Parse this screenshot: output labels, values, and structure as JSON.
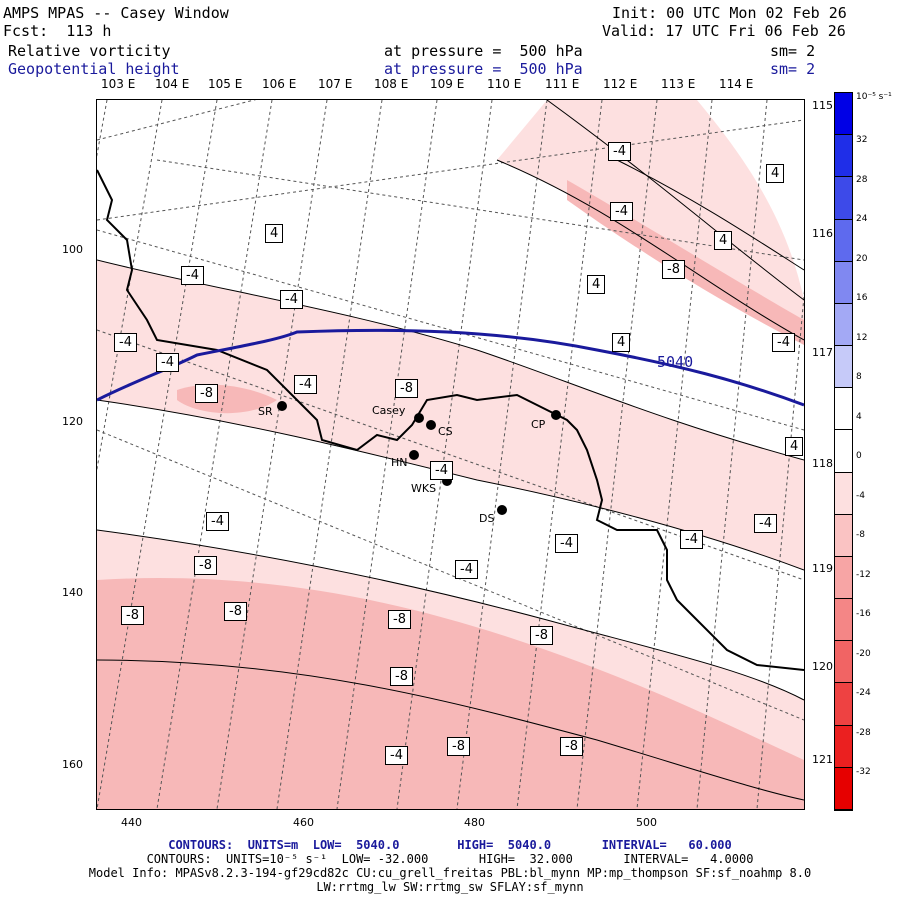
{
  "header": {
    "title": "AMPS MPAS -- Casey Window",
    "forecast": "Fcst:  113 h",
    "init": "Init: 00 UTC Mon 02 Feb 26",
    "valid": "Valid: 17 UTC Fri 06 Feb 26",
    "field1": {
      "name": "Relative vorticity",
      "level": "at pressure =  500 hPa",
      "sm": "sm= 2"
    },
    "field2": {
      "name": "Geopotential height",
      "level": "at pressure =  500 hPa",
      "sm": "sm= 2"
    }
  },
  "lon_labels": [
    "103 E",
    "104 E",
    "105 E",
    "106 E",
    "107 E",
    "108 E",
    "109 E",
    "110 E",
    "111 E",
    "112 E",
    "113 E",
    "114 E"
  ],
  "lat_labels": [
    "115 E",
    "116 E",
    "117 E",
    "118 E",
    "119 E",
    "120 E",
    "121 E"
  ],
  "axes": {
    "x_ticks": [
      "440",
      "460",
      "480",
      "500"
    ],
    "y_ticks": [
      "100",
      "120",
      "140",
      "160"
    ]
  },
  "colorbar": {
    "unit": "10⁻⁵ s⁻¹",
    "labels": [
      "32",
      "28",
      "24",
      "20",
      "16",
      "12",
      "8",
      "4",
      "0",
      "-4",
      "-8",
      "-12",
      "-16",
      "-20",
      "-24",
      "-28",
      "-32"
    ],
    "colors": [
      "#0000e6",
      "#1f2ee8",
      "#3d4ae9",
      "#5e6aee",
      "#8088f1",
      "#a3a9f5",
      "#c6caf9",
      "#ffffff",
      "#ffffff",
      "#fde0e0",
      "#fac3c3",
      "#f7a5a5",
      "#f48686",
      "#f16464",
      "#ee4242",
      "#eb2020",
      "#e60000"
    ]
  },
  "stations": [
    {
      "name": "SR"
    },
    {
      "name": "Casey"
    },
    {
      "name": "CS"
    },
    {
      "name": "CP"
    },
    {
      "name": "HN"
    },
    {
      "name": "WKS"
    },
    {
      "name": "DS"
    }
  ],
  "height_contour_label": "5040",
  "vort_labels": [
    "4",
    "-4",
    "-8"
  ],
  "footer": {
    "line1": "CONTOURS:  UNITS=m  LOW=  5040.0        HIGH=  5040.0       INTERVAL=   60.000",
    "line2": "CONTOURS:  UNITS=10⁻⁵ s⁻¹  LOW= -32.000       HIGH=  32.000       INTERVAL=   4.0000",
    "line3": "Model Info: MPASv8.2.3-194-gf29cd82c CU:cu_grell_freitas PBL:bl_mynn MP:mp_thompson SF:sf_noahmp 8.0",
    "line4": "LW:rrtmg_lw SW:rrtmg_sw SFLAY:sf_mynn"
  },
  "colors": {
    "contour_blue": "#1a1a9c",
    "fill_light": "#fde0e0",
    "fill_mid": "#f7b8b8"
  }
}
